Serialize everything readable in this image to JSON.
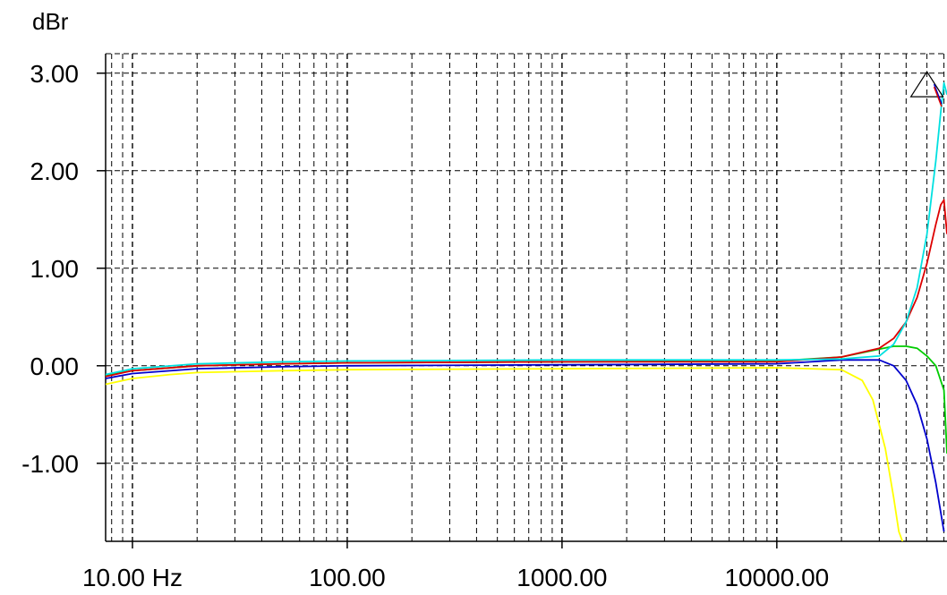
{
  "chart_data": {
    "type": "line",
    "title": "",
    "ylabel": "dBr",
    "xlabel": "",
    "x_scale": "log",
    "xlim": [
      7.5,
      62000
    ],
    "ylim": [
      -1.8,
      3.2
    ],
    "grid": true,
    "x_ticks": [
      {
        "value": 10,
        "label": "10.00 Hz"
      },
      {
        "value": 100,
        "label": "100.00"
      },
      {
        "value": 1000,
        "label": "1000.00"
      },
      {
        "value": 10000,
        "label": "10000.00"
      }
    ],
    "y_ticks": [
      {
        "value": 3,
        "label": "3.00"
      },
      {
        "value": 2,
        "label": "2.00"
      },
      {
        "value": 1,
        "label": "1.00"
      },
      {
        "value": 0,
        "label": "0.00"
      },
      {
        "value": -1,
        "label": "-1.00"
      }
    ],
    "series": [
      {
        "color": "#ffff00",
        "x": [
          7.5,
          10,
          15,
          20,
          50,
          100,
          1000,
          10000,
          20000,
          25000,
          28000,
          32000,
          35000,
          37000,
          40000
        ],
        "y": [
          -0.19,
          -0.13,
          -0.09,
          -0.07,
          -0.05,
          -0.04,
          -0.03,
          -0.02,
          -0.04,
          -0.15,
          -0.35,
          -0.85,
          -1.35,
          -1.7,
          -1.9
        ]
      },
      {
        "color": "#0000cc",
        "x": [
          7.5,
          10,
          20,
          50,
          100,
          1000,
          10000,
          20000,
          30000,
          35000,
          40000,
          45000,
          50000,
          55000,
          60000
        ],
        "y": [
          -0.13,
          -0.08,
          -0.03,
          -0.01,
          0.0,
          0.01,
          0.02,
          0.06,
          0.06,
          0.0,
          -0.15,
          -0.4,
          -0.75,
          -1.2,
          -1.7
        ]
      },
      {
        "color": "#00cc00",
        "x": [
          7.5,
          10,
          20,
          50,
          100,
          1000,
          10000,
          20000,
          30000,
          35000,
          40000,
          45000,
          50000,
          55000,
          60000,
          62000
        ],
        "y": [
          -0.1,
          -0.05,
          0.0,
          0.02,
          0.03,
          0.04,
          0.05,
          0.09,
          0.17,
          0.2,
          0.2,
          0.18,
          0.1,
          0.0,
          -0.25,
          -0.9
        ]
      },
      {
        "color": "#dd0000",
        "x": [
          7.5,
          10,
          20,
          50,
          100,
          1000,
          10000,
          20000,
          30000,
          35000,
          40000,
          45000,
          50000,
          55000,
          58000,
          60000,
          62000
        ],
        "y": [
          -0.11,
          -0.05,
          0.0,
          0.02,
          0.03,
          0.04,
          0.04,
          0.09,
          0.18,
          0.28,
          0.45,
          0.7,
          1.05,
          1.45,
          1.65,
          1.7,
          1.35
        ]
      },
      {
        "color": "#00e0e0",
        "x": [
          7.5,
          10,
          20,
          50,
          100,
          1000,
          10000,
          20000,
          30000,
          35000,
          40000,
          45000,
          50000,
          55000,
          58000,
          60000,
          62000
        ],
        "y": [
          -0.09,
          -0.03,
          0.02,
          0.04,
          0.05,
          0.06,
          0.06,
          0.07,
          0.1,
          0.22,
          0.45,
          0.8,
          1.35,
          2.1,
          2.6,
          2.9,
          2.78
        ]
      }
    ],
    "marker": {
      "shape": "triangle",
      "x": 50000,
      "y": 2.85
    }
  }
}
